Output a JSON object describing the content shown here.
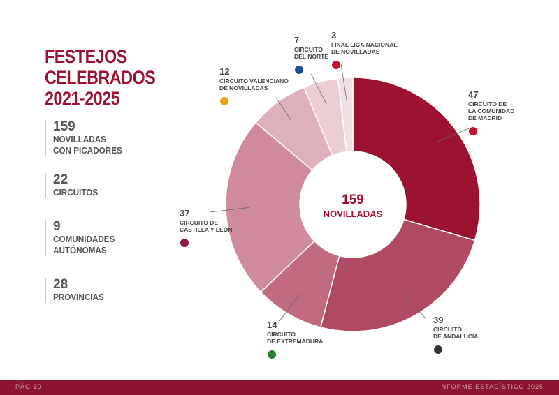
{
  "title": [
    "FESTEJOS",
    "CELEBRADOS",
    "2021-2025"
  ],
  "stats": [
    {
      "num": "159",
      "label": "NOVILLADAS\nCON PICADORES"
    },
    {
      "num": "22",
      "label": "CIRCUITOS"
    },
    {
      "num": "9",
      "label": "COMUNIDADES\nAUTÓNOMAS"
    },
    {
      "num": "28",
      "label": "PROVINCIAS"
    }
  ],
  "center": {
    "value": "159",
    "label": "NOVILLADAS"
  },
  "footer": {
    "left": "PÁG 10",
    "right": "INFORME ESTADÍSTICO 2025"
  },
  "colors": {
    "accent": "#9b1330",
    "footer": "#8c1430"
  },
  "chart_data": {
    "type": "pie",
    "subtype": "donut",
    "categories": [
      "CIRCUITO DE LA COMUNIDAD DE MADRID",
      "CIRCUITO DE ANDALUCÍA",
      "CIRCUITO DE EXTREMADURA",
      "CIRCUITO DE CASTILLA Y LEÓN",
      "CIRCUITO VALENCIANO DE NOVILLADAS",
      "CIRCUITO DEL NORTE",
      "FINAL LIGA NACIONAL DE NOVILLADAS"
    ],
    "values": [
      47,
      39,
      14,
      37,
      12,
      7,
      3
    ],
    "label_lines": [
      [
        "CIRCUITO DE",
        "LA COMUNIDAD",
        "DE MADRID"
      ],
      [
        "CIRCUITO",
        "DE ANDALUCÍA"
      ],
      [
        "CIRCUITO",
        "DE EXTREMADURA"
      ],
      [
        "CIRCUITO DE",
        "CASTILLA Y LEÓN"
      ],
      [
        "CIRCUITO VALENCIANO",
        "DE NOVILLADAS"
      ],
      [
        "CIRCUITO",
        "DEL NORTE"
      ],
      [
        "FINAL LIGA NACIONAL",
        "DE NOVILLADAS"
      ]
    ],
    "colors": [
      "#9b1330",
      "#b04a63",
      "#c26a80",
      "#cf8a9b",
      "#ddb0bb",
      "#ebcdd4",
      "#f3e0e4"
    ],
    "icons": [
      "madrid-logo-icon",
      "andalucia-logo-icon",
      "extremadura-logo-icon",
      "castilla-leon-logo-icon",
      "valenciano-logo-icon",
      "norte-logo-icon",
      "liga-nacional-logo-icon"
    ]
  }
}
